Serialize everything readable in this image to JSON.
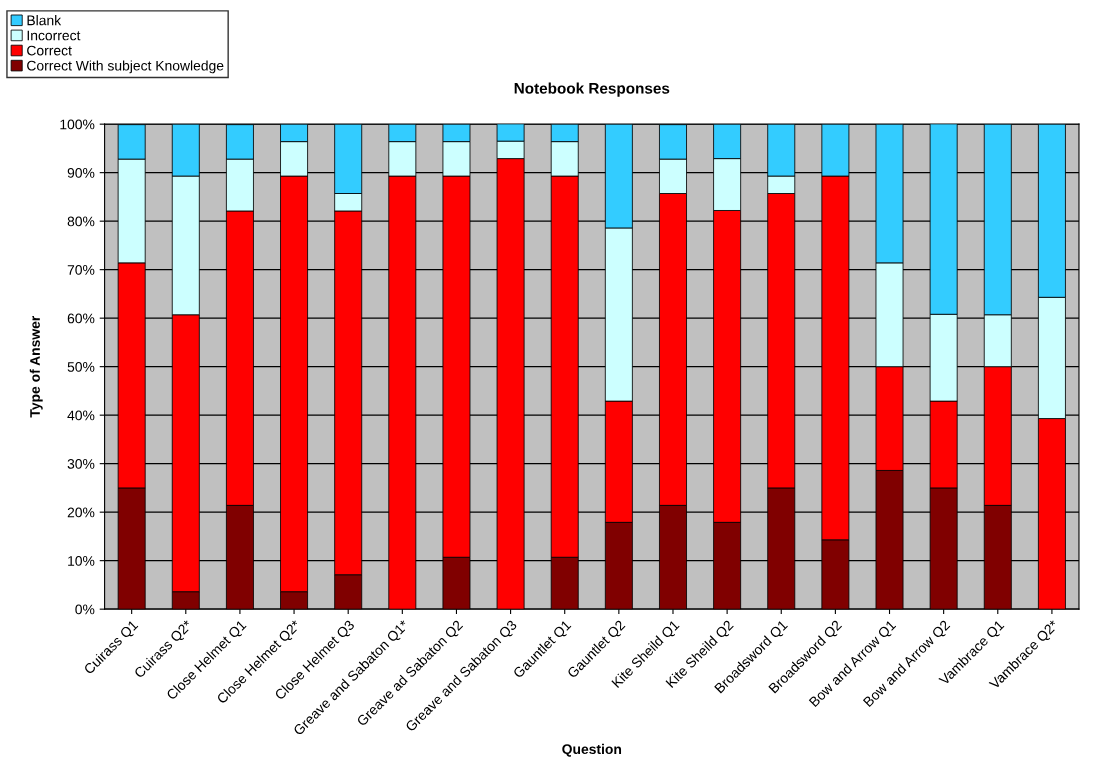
{
  "chart_data": {
    "type": "bar",
    "title": "Notebook Responses",
    "xlabel": "Question",
    "ylabel": "Type of Answer",
    "categories": [
      "Cuirass Q1",
      "Cuirass Q2*",
      "Close Helmet Q1",
      "Close Helmet Q2*",
      "Close Helmet Q3",
      "Greave and Sabaton Q1*",
      "Greave ad Sabaton Q2",
      "Greave and Sabaton Q3",
      "Gauntlet Q1",
      "Gauntlet Q2",
      "Kite Sheild Q1",
      "Kite Sheild Q2",
      "Broadsword Q1",
      "Broadsword Q2",
      "Bow and Arrow Q1",
      "Bow and Arrow Q2",
      "Vambrace Q1",
      "Vambrace Q2*"
    ],
    "stacked": true,
    "series": [
      {
        "name": "Correct With subject Knowledge",
        "color": "#800000",
        "values": [
          25,
          3.6,
          21.4,
          3.6,
          7.1,
          0,
          10.7,
          0,
          10.7,
          17.9,
          21.4,
          17.9,
          25,
          14.3,
          28.6,
          25,
          21.4,
          0
        ]
      },
      {
        "name": "Correct",
        "color": "#ff0000",
        "values": [
          46.4,
          57.1,
          60.7,
          85.7,
          75,
          89.3,
          78.6,
          92.9,
          78.6,
          25,
          64.3,
          64.3,
          60.7,
          75,
          21.4,
          17.9,
          28.6,
          39.3
        ]
      },
      {
        "name": "Incorrect",
        "color": "#ccffff",
        "values": [
          21.4,
          28.6,
          10.7,
          7.1,
          3.6,
          7.1,
          7.1,
          3.6,
          7.1,
          35.7,
          7.1,
          10.7,
          3.6,
          0,
          21.4,
          17.9,
          10.7,
          25
        ]
      },
      {
        "name": "Blank",
        "color": "#33ccff",
        "values": [
          7.1,
          10.7,
          7.1,
          3.6,
          14.3,
          3.6,
          3.6,
          3.6,
          3.6,
          21.4,
          7.1,
          7.1,
          10.7,
          10.7,
          28.6,
          39.3,
          39.3,
          35.7
        ]
      }
    ],
    "ylim": [
      0,
      100
    ],
    "yticks": [
      {
        "value": 0,
        "label": "0%"
      },
      {
        "value": 10,
        "label": "10%"
      },
      {
        "value": 20,
        "label": "20%"
      },
      {
        "value": 30,
        "label": "30%"
      },
      {
        "value": 40,
        "label": "40%"
      },
      {
        "value": 50,
        "label": "50%"
      },
      {
        "value": 60,
        "label": "60%"
      },
      {
        "value": 70,
        "label": "70%"
      },
      {
        "value": 80,
        "label": "80%"
      },
      {
        "value": 90,
        "label": "90%"
      },
      {
        "value": 100,
        "label": "100%"
      }
    ],
    "grid": "y",
    "legend": "top left"
  }
}
